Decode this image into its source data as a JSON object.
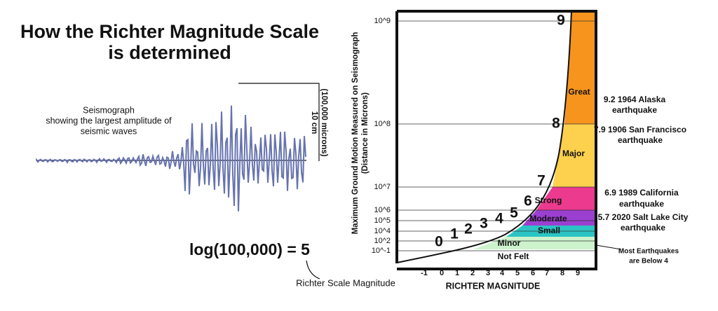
{
  "title": [
    "How the Richter Magnitude Scale",
    "is determined"
  ],
  "seismograph": {
    "label": [
      "Seismograph",
      "showing the largest amplitude of",
      "seismic waves"
    ],
    "scale": [
      "10 cm",
      "(100,000 microns)"
    ]
  },
  "equation": "log(100,000) = 5",
  "equation_caption": "Richter Scale Magnitude",
  "chart": {
    "y_axis_title": [
      "Maximum Ground Motion Measured on Seismograph",
      "(Distance in Microns)"
    ],
    "y_labels": [
      "10^9",
      "10^8",
      "10^7",
      "10^6",
      "10^5",
      "10^4",
      "10^2",
      "10^-1"
    ],
    "x_labels": [
      "-1",
      "0",
      "1",
      "2",
      "3",
      "4",
      "5",
      "6",
      "7",
      "8",
      "9"
    ],
    "x_axis_title": "RICHTER MAGNITUDE",
    "curve_labels": [
      "0",
      "1",
      "2",
      "3",
      "4",
      "5",
      "6",
      "7",
      "8",
      "9"
    ],
    "zones": [
      "Great",
      "Major",
      "Strong",
      "Moderate",
      "Small",
      "Minor",
      "Not Felt"
    ]
  },
  "annotations": [
    [
      "9.2 1964 Alaska",
      "earthquake"
    ],
    [
      "7.9 1906 San Francisco",
      "earthquake"
    ],
    [
      "6.9 1989 California",
      "earthquake"
    ],
    [
      "5.7 2020 Salt Lake City",
      "earthquake"
    ],
    [
      "Most Earthquakes",
      "are Below 4"
    ]
  ]
}
